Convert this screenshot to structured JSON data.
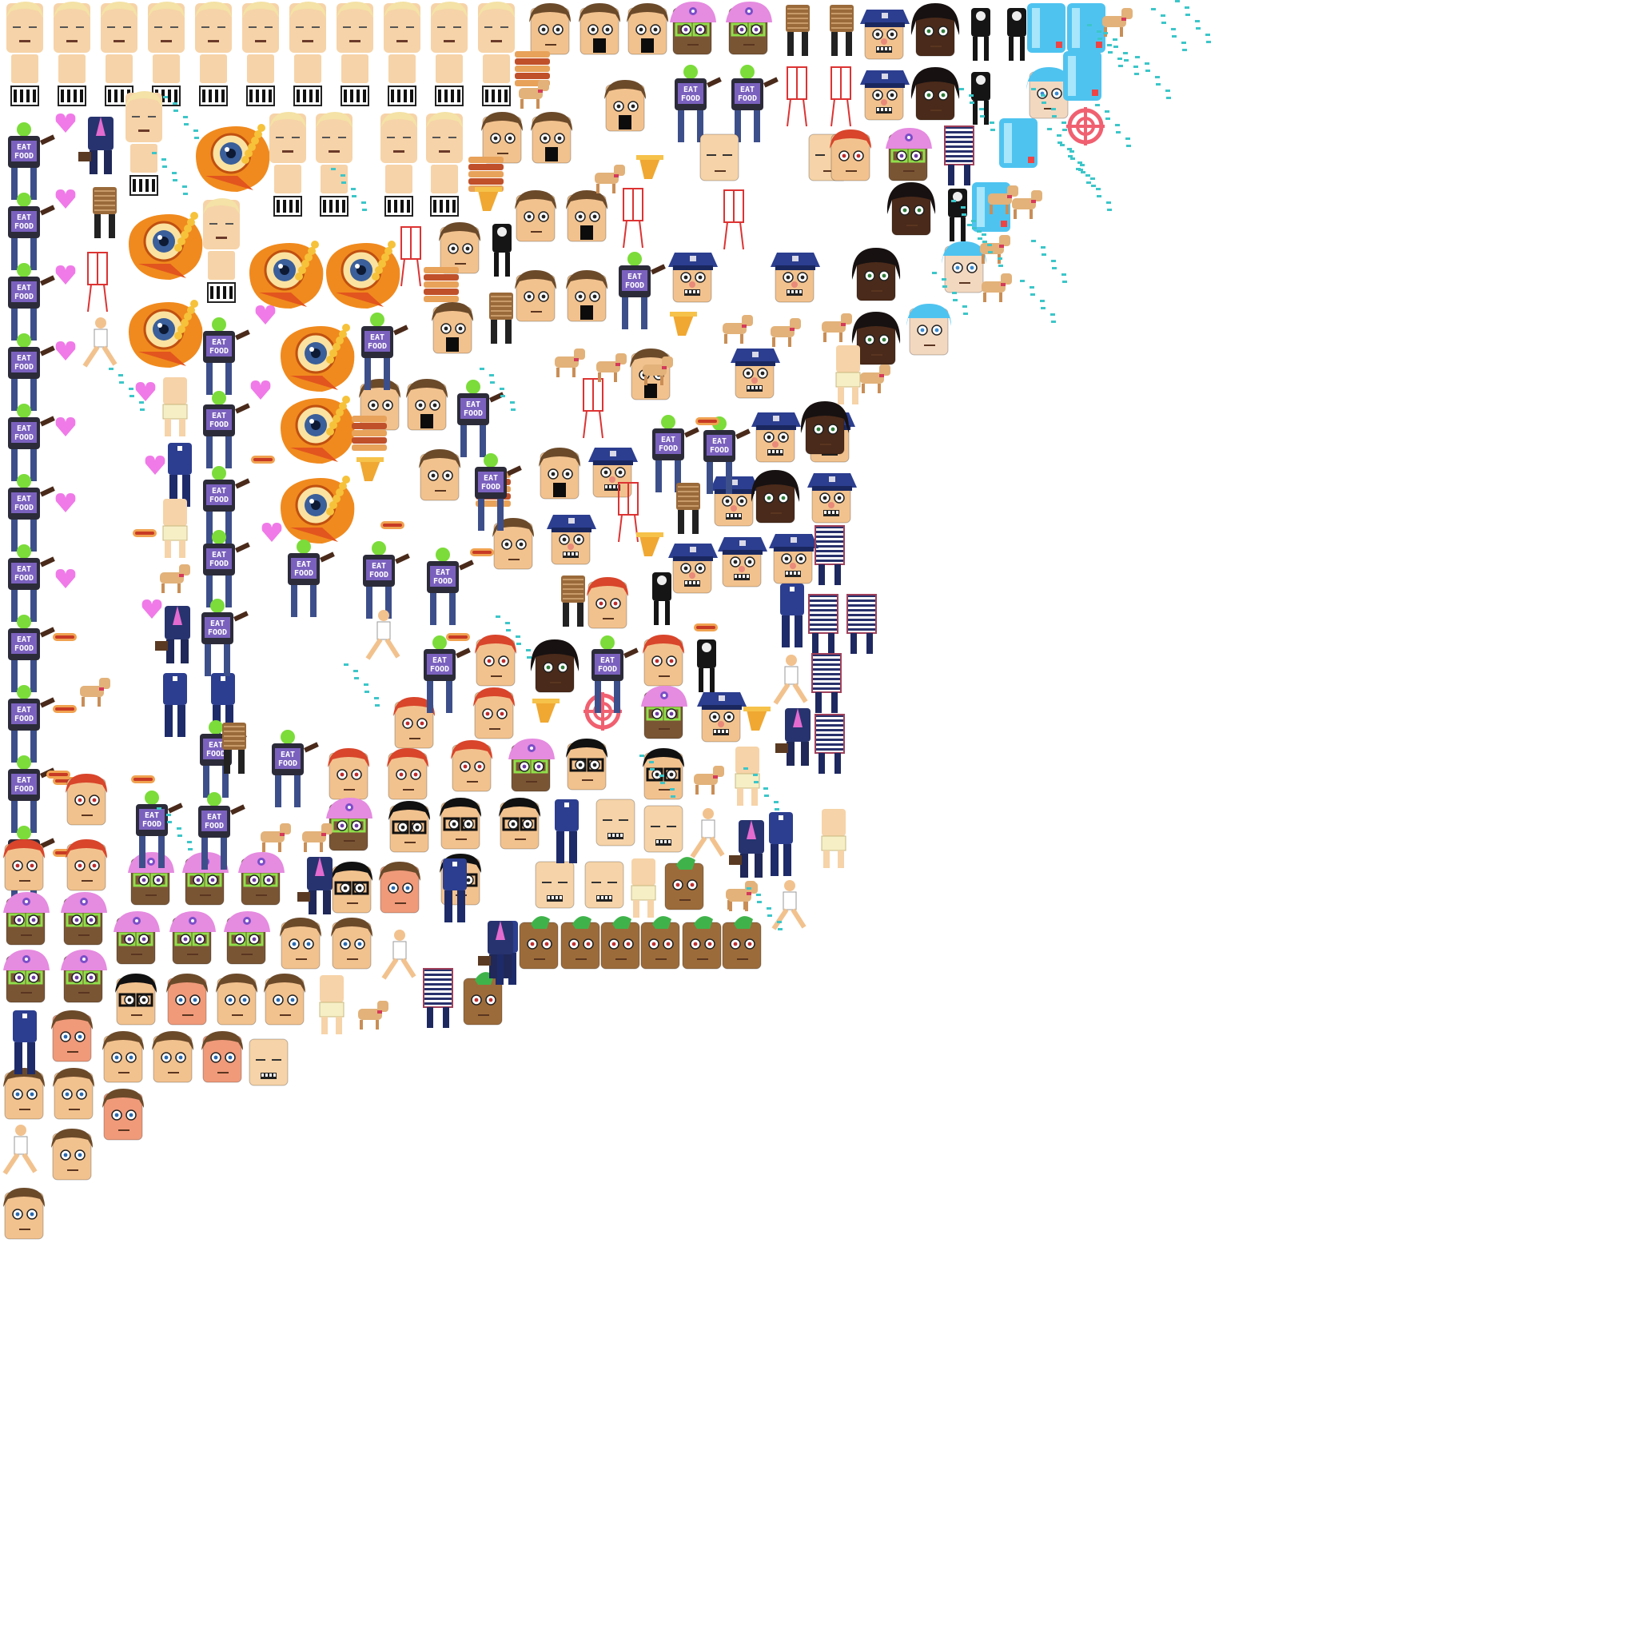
{
  "sheet": {
    "background": "#ffffff",
    "tee_text": [
      "EAT",
      "FOOD"
    ]
  },
  "palette": {
    "skin": "#f2c28e",
    "skin_shade": "#d9a16a",
    "pale_skin": "#f6d3a8",
    "brown_hair": "#6b4a2a",
    "red_hair": "#d8452b",
    "dark_skin": "#4a2a1a",
    "police_blue": "#2c3e8f",
    "tee_dark": "#2b2b3a",
    "tee_neon": "#7bdc3a",
    "jeans": "#3d4f8a",
    "pink": "#f07ae8",
    "cap_pink": "#e58be0",
    "glasses_green": "#8fe04a",
    "bird_orange": "#f08a1e",
    "bird_eye": "#3a5f9a",
    "ice_blue": "#4fc3f0",
    "dog_tan": "#e2b27a",
    "mohawk_green": "#3fb34a",
    "potato_brown": "#9c6b3a",
    "cyan_fx": "#3cc6c9",
    "red_target": "#f06070",
    "stripe_navy": "#27306b"
  },
  "sprite_kinds": [
    "bald-man-head",
    "bald-man-body",
    "brown-hair-man-head",
    "brown-hair-man-screaming",
    "red-hair-boy-head",
    "pink-cap-glasses-head",
    "afro-woman-head",
    "police-officer-head",
    "police-officer-body",
    "eat-food-tee-body",
    "burger-stack",
    "heart-icon",
    "hot-dog-icon",
    "dog-sprite",
    "bird-boss-sprite",
    "skeleton-body",
    "striped-shirt-body",
    "ice-block",
    "target-reticle-icon",
    "mohawk-potato-head",
    "glasses-man-head",
    "suit-man-body",
    "skeleton-outline-body",
    "running-man-body",
    "cyan-splash-fx",
    "sweater-body"
  ]
}
